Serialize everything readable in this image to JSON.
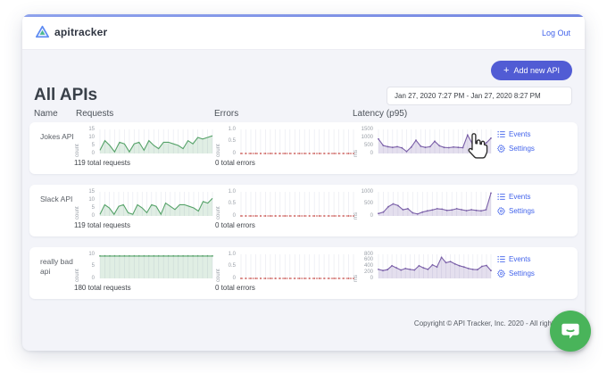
{
  "header": {
    "brand": "apitracker",
    "logout_label": "Log Out"
  },
  "toolbar": {
    "add_button_label": "Add new API",
    "add_button_plus": "+",
    "date_range": "Jan 27, 2020 7:27 PM - Jan 27, 2020 8:27 PM"
  },
  "page": {
    "title": "All APIs"
  },
  "columns": {
    "name": "Name",
    "requests": "Requests",
    "errors": "Errors",
    "latency": "Latency (p95)"
  },
  "row_links": {
    "events": "Events",
    "settings": "Settings"
  },
  "footer": {
    "copyright": "Copyright © API Tracker, Inc. 2020 - All rights r"
  },
  "colors": {
    "accent_indigo": "#515cd4",
    "link_blue": "#4263eb",
    "chart_green": "#55a268",
    "chart_red": "#c9534f",
    "chart_purple": "#7a5fa8",
    "chat_green": "#49b45a",
    "content_bg": "#f3f4f9"
  },
  "rows": [
    {
      "name": "Jokes API",
      "requests": {
        "caption": "119 total requests",
        "unit": "count",
        "chart": {
          "type": "line",
          "color": "#55a268",
          "fill": "rgba(85,162,104,0.18)",
          "dashed": false,
          "markers": false,
          "ymax": 15,
          "yticks": [
            {
              "t": "15",
              "v": 15
            },
            {
              "t": "10",
              "v": 10
            },
            {
              "t": "5",
              "v": 5
            },
            {
              "t": "0",
              "v": 0
            }
          ],
          "values": [
            2,
            8,
            5,
            1,
            7,
            6,
            1,
            6,
            7,
            2,
            8,
            5,
            3,
            7,
            7,
            6,
            5,
            3,
            8,
            6,
            10,
            9,
            10,
            11
          ]
        }
      },
      "errors": {
        "caption": "0 total errors",
        "unit": "count",
        "chart": {
          "type": "line",
          "color": "#c9534f",
          "fill": null,
          "dashed": true,
          "markers": true,
          "ymax": 1,
          "yticks": [
            {
              "t": "1.0",
              "v": 1
            },
            {
              "t": "0.5",
              "v": 0.5
            },
            {
              "t": "0",
              "v": 0
            }
          ],
          "values": [
            0,
            0,
            0,
            0,
            0,
            0,
            0,
            0,
            0,
            0,
            0,
            0,
            0,
            0,
            0,
            0,
            0,
            0,
            0,
            0,
            0,
            0,
            0,
            0
          ]
        }
      },
      "latency": {
        "unit": "ms",
        "chart": {
          "type": "line",
          "color": "#7a5fa8",
          "fill": "rgba(122,95,168,0.2)",
          "dashed": false,
          "markers": true,
          "ymax": 1500,
          "yticks": [
            {
              "t": "1500",
              "v": 1500
            },
            {
              "t": "1000",
              "v": 1000
            },
            {
              "t": "500",
              "v": 500
            },
            {
              "t": "0",
              "v": 0
            }
          ],
          "values": [
            900,
            500,
            420,
            380,
            420,
            350,
            120,
            400,
            820,
            450,
            380,
            420,
            760,
            480,
            380,
            360,
            400,
            380,
            360,
            1150,
            620,
            760,
            560,
            660,
            950
          ]
        }
      }
    },
    {
      "name": "Slack API",
      "requests": {
        "caption": "119 total requests",
        "unit": "count",
        "chart": {
          "type": "line",
          "color": "#55a268",
          "fill": "rgba(85,162,104,0.18)",
          "dashed": false,
          "markers": false,
          "ymax": 15,
          "yticks": [
            {
              "t": "15",
              "v": 15
            },
            {
              "t": "10",
              "v": 10
            },
            {
              "t": "5",
              "v": 5
            },
            {
              "t": "0",
              "v": 0
            }
          ],
          "values": [
            1,
            7,
            5,
            1,
            6,
            7,
            2,
            1,
            7,
            5,
            2,
            7,
            6,
            1,
            8,
            6,
            4,
            7,
            7,
            6,
            5,
            3,
            9,
            8,
            11
          ]
        }
      },
      "errors": {
        "caption": "0 total errors",
        "unit": "count",
        "chart": {
          "type": "line",
          "color": "#c9534f",
          "fill": null,
          "dashed": true,
          "markers": true,
          "ymax": 1,
          "yticks": [
            {
              "t": "1.0",
              "v": 1
            },
            {
              "t": "0.5",
              "v": 0.5
            },
            {
              "t": "0",
              "v": 0
            }
          ],
          "values": [
            0,
            0,
            0,
            0,
            0,
            0,
            0,
            0,
            0,
            0,
            0,
            0,
            0,
            0,
            0,
            0,
            0,
            0,
            0,
            0,
            0,
            0,
            0,
            0
          ]
        }
      },
      "latency": {
        "unit": "ms",
        "chart": {
          "type": "line",
          "color": "#7a5fa8",
          "fill": "rgba(122,95,168,0.2)",
          "dashed": false,
          "markers": true,
          "ymax": 1000,
          "yticks": [
            {
              "t": "1000",
              "v": 1000
            },
            {
              "t": "500",
              "v": 500
            },
            {
              "t": "0",
              "v": 0
            }
          ],
          "values": [
            100,
            160,
            380,
            500,
            430,
            260,
            300,
            130,
            80,
            160,
            210,
            250,
            300,
            280,
            230,
            250,
            300,
            260,
            220,
            260,
            230,
            210,
            260,
            950
          ]
        }
      }
    },
    {
      "name": "really bad api",
      "requests": {
        "caption": "180 total requests",
        "unit": "count",
        "chart": {
          "type": "line",
          "color": "#55a268",
          "fill": "rgba(85,162,104,0.18)",
          "dashed": false,
          "markers": true,
          "ymax": 10,
          "yticks": [
            {
              "t": "10",
              "v": 10
            },
            {
              "t": "5",
              "v": 5
            },
            {
              "t": "0",
              "v": 0
            }
          ],
          "values": [
            9.3,
            9.3,
            9.3,
            9.3,
            9.3,
            9.3,
            9.3,
            9.3,
            9.3,
            9.3,
            9.3,
            9.3,
            9.3,
            9.3,
            9.3,
            9.3,
            9.3,
            9.3,
            9.3,
            9.3,
            9.3,
            9.3,
            9.3,
            9.3
          ]
        }
      },
      "errors": {
        "caption": "0 total errors",
        "unit": "count",
        "chart": {
          "type": "line",
          "color": "#c9534f",
          "fill": null,
          "dashed": true,
          "markers": true,
          "ymax": 1,
          "yticks": [
            {
              "t": "1.0",
              "v": 1
            },
            {
              "t": "0.5",
              "v": 0.5
            },
            {
              "t": "0",
              "v": 0
            }
          ],
          "values": [
            0,
            0,
            0,
            0,
            0,
            0,
            0,
            0,
            0,
            0,
            0,
            0,
            0,
            0,
            0,
            0,
            0,
            0,
            0,
            0,
            0,
            0,
            0,
            0
          ]
        }
      },
      "latency": {
        "unit": "ms",
        "chart": {
          "type": "line",
          "color": "#7a5fa8",
          "fill": "rgba(122,95,168,0.2)",
          "dashed": false,
          "markers": true,
          "ymax": 800,
          "yticks": [
            {
              "t": "800",
              "v": 800
            },
            {
              "t": "600",
              "v": 600
            },
            {
              "t": "400",
              "v": 400
            },
            {
              "t": "200",
              "v": 200
            },
            {
              "t": "0",
              "v": 0
            }
          ],
          "values": [
            300,
            260,
            290,
            420,
            350,
            280,
            330,
            300,
            280,
            420,
            350,
            300,
            450,
            380,
            700,
            520,
            560,
            480,
            420,
            380,
            330,
            300,
            290,
            400,
            430,
            260
          ]
        }
      }
    }
  ]
}
